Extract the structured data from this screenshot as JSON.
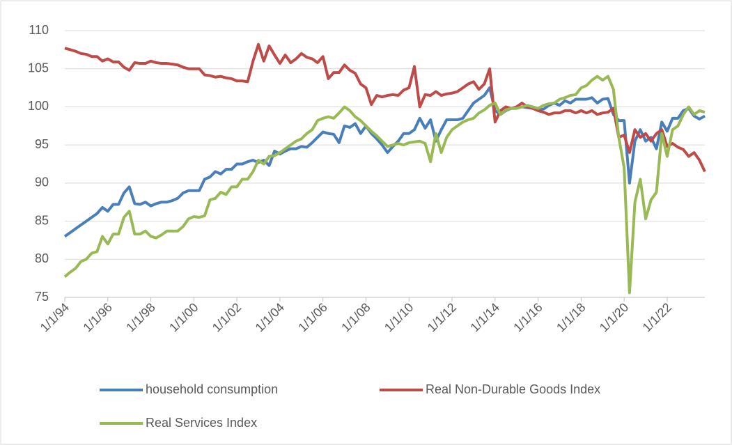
{
  "chart_data": {
    "type": "line",
    "x": [
      1994,
      1994.25,
      1994.5,
      1994.75,
      1995,
      1995.25,
      1995.5,
      1995.75,
      1996,
      1996.25,
      1996.5,
      1996.75,
      1997,
      1997.25,
      1997.5,
      1997.75,
      1998,
      1998.25,
      1998.5,
      1998.75,
      1999,
      1999.25,
      1999.5,
      1999.75,
      2000,
      2000.25,
      2000.5,
      2000.75,
      2001,
      2001.25,
      2001.5,
      2001.75,
      2002,
      2002.25,
      2002.5,
      2002.75,
      2003,
      2003.25,
      2003.5,
      2003.75,
      2004,
      2004.25,
      2004.5,
      2004.75,
      2005,
      2005.25,
      2005.5,
      2005.75,
      2006,
      2006.25,
      2006.5,
      2006.75,
      2007,
      2007.25,
      2007.5,
      2007.75,
      2008,
      2008.25,
      2008.5,
      2008.75,
      2009,
      2009.25,
      2009.5,
      2009.75,
      2010,
      2010.25,
      2010.5,
      2010.75,
      2011,
      2011.25,
      2011.5,
      2011.75,
      2012,
      2012.25,
      2012.5,
      2012.75,
      2013,
      2013.25,
      2013.5,
      2013.75,
      2014,
      2014.25,
      2014.5,
      2014.75,
      2015,
      2015.25,
      2015.5,
      2015.75,
      2016,
      2016.25,
      2016.5,
      2016.75,
      2017,
      2017.25,
      2017.5,
      2017.75,
      2018,
      2018.25,
      2018.5,
      2018.75,
      2019,
      2019.25,
      2019.5,
      2019.75,
      2020,
      2020.25,
      2020.5,
      2020.75,
      2021,
      2021.25,
      2021.5,
      2021.75,
      2022,
      2022.25,
      2022.5,
      2022.75,
      2023,
      2023.25,
      2023.5,
      2023.75
    ],
    "series": [
      {
        "name": "household consumption",
        "color": "#4a7ebb",
        "values": [
          83,
          83.5,
          84,
          84.5,
          85,
          85.5,
          86,
          86.8,
          86.3,
          87.2,
          87.2,
          88.7,
          89.5,
          87.3,
          87.2,
          87.5,
          87,
          87.3,
          87.5,
          87.5,
          87.7,
          88,
          88.7,
          89,
          89,
          89,
          90.5,
          90.8,
          91.5,
          91.2,
          91.8,
          91.8,
          92.5,
          92.5,
          92.8,
          93,
          92.7,
          93,
          92.3,
          94.2,
          93.8,
          94.2,
          94.5,
          94.5,
          94.8,
          94.7,
          95.3,
          96,
          96.7,
          96.5,
          96.4,
          95.3,
          97.5,
          97.3,
          97.8,
          96.5,
          97.5,
          96.5,
          95.8,
          95,
          94,
          94.8,
          95.5,
          96.5,
          96.5,
          97,
          98.5,
          97.2,
          98.3,
          95.5,
          97,
          98.3,
          98.3,
          98.3,
          98.5,
          99.5,
          100.5,
          101,
          101.5,
          102.5,
          99.5,
          99,
          99.5,
          99.8,
          99.8,
          100,
          99.9,
          99.8,
          99.7,
          99.7,
          100.2,
          100.5,
          100.2,
          100.8,
          100.5,
          101,
          101,
          101,
          101.2,
          100.5,
          101,
          101.1,
          99,
          98.2,
          98.2,
          90,
          95.5,
          97,
          95.5,
          96,
          94.5,
          98,
          96.8,
          98.5,
          98.5,
          99.5,
          99.8,
          98.8,
          98.4,
          98.8
        ]
      },
      {
        "name": "Real Non-Durable Goods Index",
        "color": "#be4b48",
        "values": [
          107.7,
          107.5,
          107.3,
          107,
          106.9,
          106.6,
          106.6,
          106,
          106.3,
          105.9,
          105.9,
          105.2,
          104.8,
          105.8,
          105.7,
          105.7,
          106,
          105.8,
          105.7,
          105.7,
          105.6,
          105.5,
          105.2,
          105,
          105,
          105,
          104.2,
          104.1,
          103.9,
          104,
          103.8,
          103.7,
          103.4,
          103.4,
          103.3,
          106,
          108.2,
          106,
          108,
          106.8,
          105.7,
          106.8,
          105.8,
          106.3,
          107,
          106.5,
          106.3,
          105.8,
          106.6,
          103.7,
          104.5,
          104.5,
          105.5,
          104.8,
          104.4,
          103,
          102.5,
          100.3,
          101.5,
          101.3,
          101.5,
          101.6,
          101.5,
          102.2,
          102.5,
          105.3,
          100,
          101.6,
          101.5,
          102,
          101.5,
          101.7,
          101.8,
          102,
          102.5,
          103,
          103.3,
          102.3,
          103,
          105,
          98,
          99.5,
          100,
          99.8,
          100,
          100.5,
          100,
          99.8,
          99.5,
          99.3,
          99,
          99.2,
          99.2,
          99.5,
          99.5,
          99.2,
          99.5,
          99.2,
          99.5,
          99,
          99.2,
          99.3,
          99.8,
          96,
          96.3,
          94,
          97,
          96,
          96.5,
          95.5,
          96.5,
          97,
          94.8,
          95.2,
          94.7,
          94.4,
          93.5,
          94,
          93,
          91.5
        ]
      },
      {
        "name": "Real Services Index",
        "color": "#98b954",
        "values": [
          77.7,
          78.3,
          78.8,
          79.7,
          80,
          80.8,
          81,
          83,
          82,
          83.3,
          83.3,
          85.5,
          86.3,
          83.3,
          83.3,
          83.7,
          83,
          82.8,
          83.2,
          83.7,
          83.7,
          83.7,
          84.3,
          85.3,
          85.6,
          85.5,
          85.7,
          87.8,
          88,
          88.8,
          88.5,
          89.5,
          89.5,
          90.5,
          90.5,
          91.5,
          93,
          92.5,
          93.5,
          93.6,
          94,
          94.5,
          95,
          95.5,
          95.8,
          96.5,
          97,
          98.2,
          98.5,
          98.7,
          98.5,
          99.2,
          100,
          99.5,
          98.7,
          98.2,
          97.5,
          96.8,
          96.2,
          95.5,
          94.8,
          95,
          95.2,
          95,
          95.3,
          95.4,
          95.5,
          95.2,
          92.8,
          96.5,
          94,
          96,
          97,
          97.5,
          98,
          98.3,
          98.5,
          99.2,
          99.6,
          100.2,
          100.5,
          99,
          99.6,
          99.8,
          99.8,
          100,
          100.2,
          100,
          99.8,
          100.2,
          100.4,
          100.5,
          101,
          101.2,
          101.5,
          101.6,
          102.5,
          102.8,
          103.5,
          104,
          103.5,
          104,
          102.3,
          96,
          92,
          75.6,
          87.5,
          90.5,
          85.3,
          87.8,
          88.8,
          96.5,
          93.5,
          97,
          97.5,
          99,
          100,
          99,
          99.5,
          99.3
        ]
      }
    ],
    "xlim": [
      1994,
      2023.75
    ],
    "xticks": [
      {
        "value": 1994,
        "label": "1/1/94"
      },
      {
        "value": 1996,
        "label": "1/1/96"
      },
      {
        "value": 1998,
        "label": "1/1/98"
      },
      {
        "value": 2000,
        "label": "1/1/00"
      },
      {
        "value": 2002,
        "label": "1/1/02"
      },
      {
        "value": 2004,
        "label": "1/1/04"
      },
      {
        "value": 2006,
        "label": "1/1/06"
      },
      {
        "value": 2008,
        "label": "1/1/08"
      },
      {
        "value": 2010,
        "label": "1/1/10"
      },
      {
        "value": 2012,
        "label": "1/1/12"
      },
      {
        "value": 2014,
        "label": "1/1/14"
      },
      {
        "value": 2016,
        "label": "1/1/16"
      },
      {
        "value": 2018,
        "label": "1/1/18"
      },
      {
        "value": 2020,
        "label": "1/1/20"
      },
      {
        "value": 2022,
        "label": "1/1/22"
      }
    ],
    "ylim": [
      75,
      110
    ],
    "yticks": [
      75,
      80,
      85,
      90,
      95,
      100,
      105,
      110
    ],
    "grid": true
  }
}
